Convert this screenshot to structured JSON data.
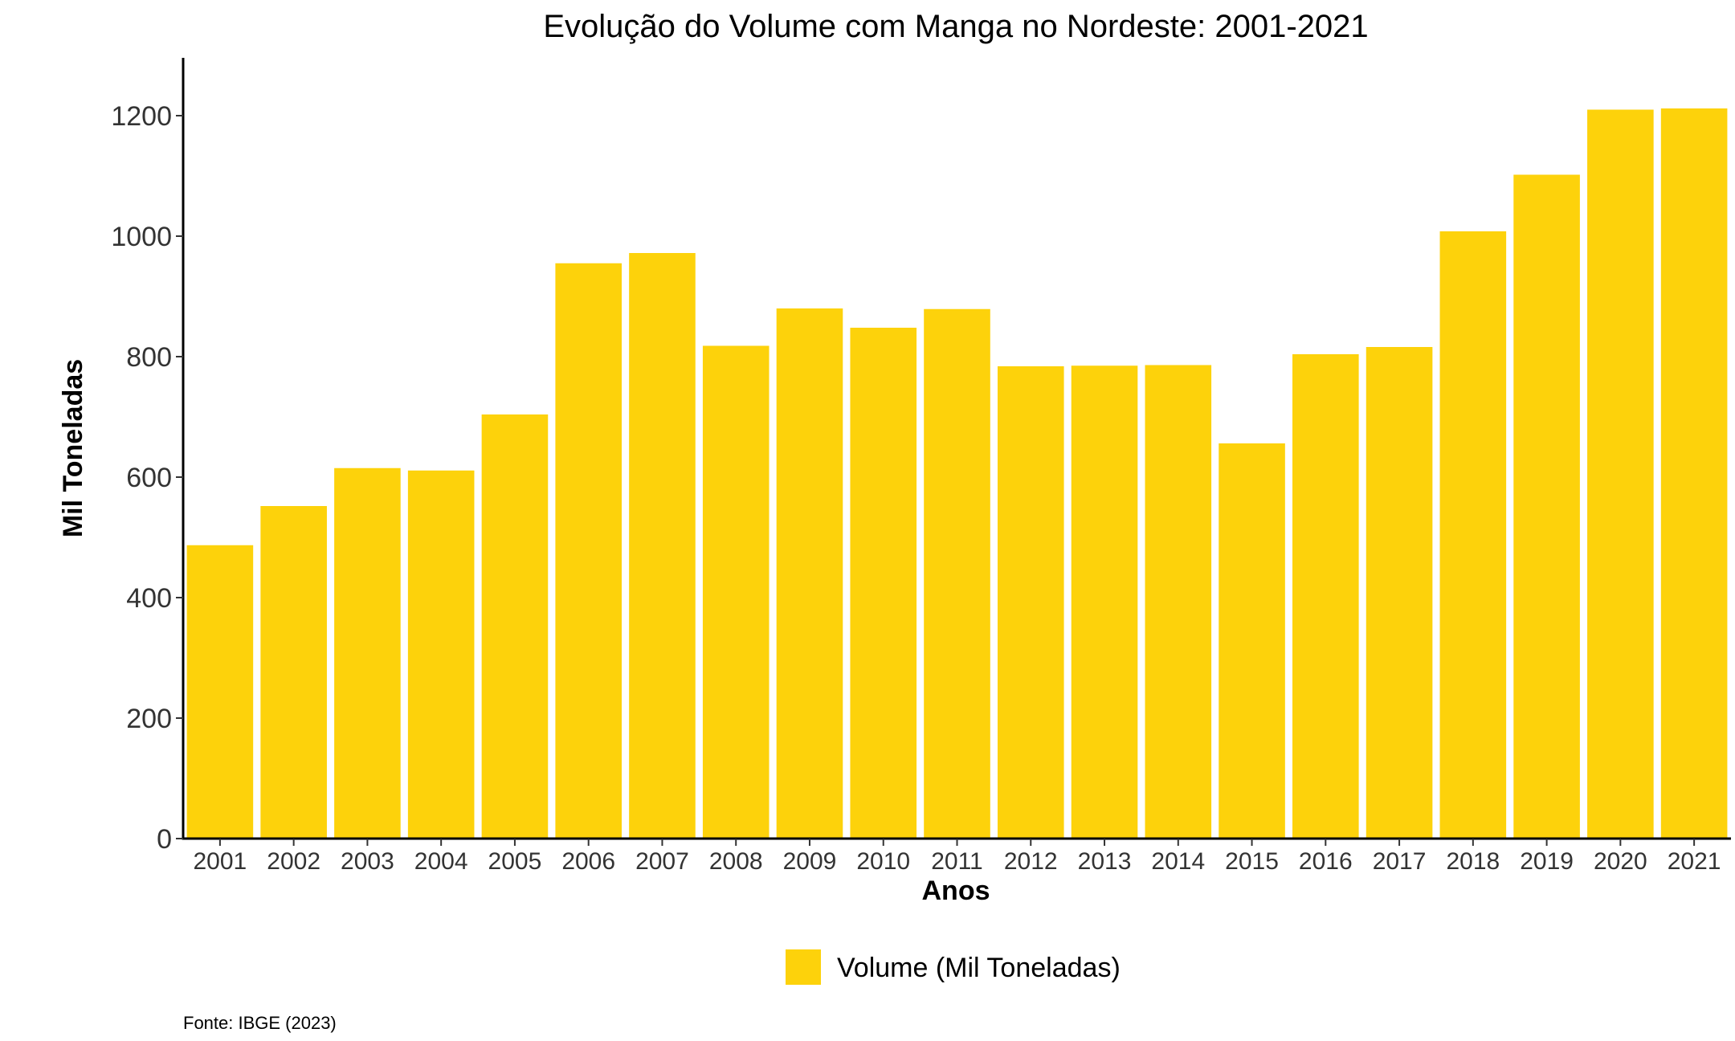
{
  "chart_data": {
    "type": "bar",
    "title": "Evolução do Volume com Manga no Nordeste: 2001-2021",
    "xlabel": "Anos",
    "ylabel": "Mil Toneladas",
    "categories": [
      "2001",
      "2002",
      "2003",
      "2004",
      "2005",
      "2006",
      "2007",
      "2008",
      "2009",
      "2010",
      "2011",
      "2012",
      "2013",
      "2014",
      "2015",
      "2016",
      "2017",
      "2018",
      "2019",
      "2020",
      "2021"
    ],
    "series": [
      {
        "name": "Volume (Mil Toneladas)",
        "values": [
          487,
          552,
          615,
          611,
          704,
          955,
          972,
          818,
          880,
          848,
          879,
          784,
          785,
          786,
          656,
          804,
          816,
          1008,
          1102,
          1210,
          1212
        ],
        "color": "#FDD20B"
      }
    ],
    "yticks": [
      0,
      200,
      400,
      600,
      800,
      1000,
      1200
    ],
    "ylim": [
      0,
      1300
    ],
    "grid": false,
    "legend_position": "bottom",
    "caption": "Fonte: IBGE (2023)"
  }
}
